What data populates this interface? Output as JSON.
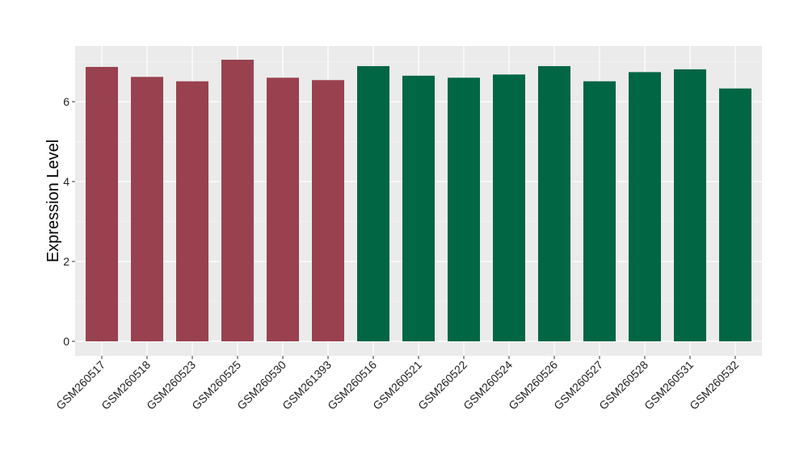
{
  "chart_data": {
    "type": "bar",
    "title": "",
    "xlabel": "",
    "ylabel": "Expression Level",
    "ylim": [
      0,
      7.0
    ],
    "y_ticks": [
      0,
      2,
      4,
      6
    ],
    "grid": true,
    "categories": [
      "GSM260517",
      "GSM260518",
      "GSM260523",
      "GSM260525",
      "GSM260530",
      "GSM261393",
      "GSM260516",
      "GSM260521",
      "GSM260522",
      "GSM260524",
      "GSM260526",
      "GSM260527",
      "GSM260528",
      "GSM260531",
      "GSM260532"
    ],
    "values": [
      6.87,
      6.62,
      6.51,
      7.05,
      6.6,
      6.54,
      6.89,
      6.65,
      6.6,
      6.68,
      6.89,
      6.51,
      6.74,
      6.81,
      6.33
    ],
    "group_colors": [
      "#99414f",
      "#99414f",
      "#99414f",
      "#99414f",
      "#99414f",
      "#99414f",
      "#006644",
      "#006644",
      "#006644",
      "#006644",
      "#006644",
      "#006644",
      "#006644",
      "#006644",
      "#006644"
    ],
    "colors": {
      "panel_background": "#ebebeb",
      "grid_major": "#ffffff",
      "grid_minor": "#f5f5f5",
      "tick": "#333333"
    }
  }
}
